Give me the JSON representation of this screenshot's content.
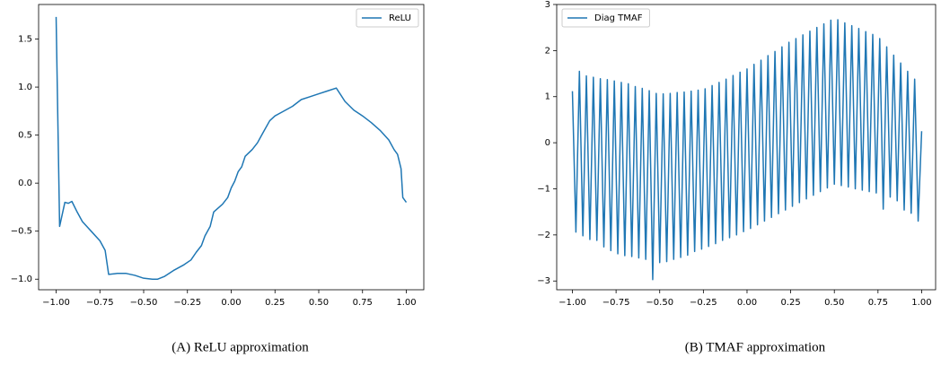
{
  "chart_data": [
    {
      "type": "line",
      "caption": "(A) ReLU approximation",
      "legend": "upper right",
      "x": [
        -1.0,
        -0.98,
        -0.95,
        -0.93,
        -0.91,
        -0.88,
        -0.85,
        -0.8,
        -0.75,
        -0.72,
        -0.7,
        -0.65,
        -0.6,
        -0.55,
        -0.5,
        -0.45,
        -0.42,
        -0.38,
        -0.33,
        -0.27,
        -0.23,
        -0.2,
        -0.17,
        -0.15,
        -0.12,
        -0.1,
        -0.05,
        -0.02,
        0.0,
        0.02,
        0.04,
        0.06,
        0.08,
        0.12,
        0.15,
        0.18,
        0.22,
        0.25,
        0.3,
        0.35,
        0.4,
        0.45,
        0.5,
        0.55,
        0.6,
        0.65,
        0.7,
        0.75,
        0.8,
        0.85,
        0.9,
        0.93,
        0.95,
        0.97,
        0.98,
        1.0
      ],
      "series": [
        {
          "name": "ReLU",
          "color": "#1f77b4",
          "values": [
            1.73,
            -0.45,
            -0.2,
            -0.21,
            -0.19,
            -0.3,
            -0.4,
            -0.5,
            -0.6,
            -0.7,
            -0.95,
            -0.94,
            -0.94,
            -0.96,
            -0.99,
            -1.0,
            -1.0,
            -0.97,
            -0.91,
            -0.85,
            -0.8,
            -0.72,
            -0.65,
            -0.55,
            -0.45,
            -0.3,
            -0.22,
            -0.15,
            -0.05,
            0.02,
            0.12,
            0.17,
            0.28,
            0.35,
            0.42,
            0.52,
            0.65,
            0.7,
            0.75,
            0.8,
            0.87,
            0.9,
            0.93,
            0.96,
            0.99,
            0.85,
            0.76,
            0.7,
            0.63,
            0.55,
            0.45,
            0.35,
            0.3,
            0.15,
            -0.15,
            -0.2
          ]
        }
      ],
      "xlim": [
        -1.1,
        1.1
      ],
      "ylim": [
        -1.11,
        1.86
      ],
      "xticks": [
        {
          "value": -1.0,
          "label": "−1.00"
        },
        {
          "value": -0.75,
          "label": "−0.75"
        },
        {
          "value": -0.5,
          "label": "−0.50"
        },
        {
          "value": -0.25,
          "label": "−0.25"
        },
        {
          "value": 0,
          "label": "0.00"
        },
        0.25,
        {
          "value": 0.5,
          "label": "0.50"
        },
        0.75,
        {
          "value": 1.0,
          "label": "1.00"
        }
      ],
      "yticks": [
        {
          "value": -1.0,
          "label": "−1.0"
        },
        {
          "value": -0.5,
          "label": "−0.5"
        },
        {
          "value": 0,
          "label": "0.0"
        },
        0.5,
        {
          "value": 1.0,
          "label": "1.0"
        },
        1.5
      ]
    },
    {
      "type": "line",
      "caption": "(B) TMAF approximation",
      "legend": "upper left",
      "x": [
        -1.0,
        -0.98,
        -0.96,
        -0.94,
        -0.92,
        -0.9,
        -0.88,
        -0.86,
        -0.84,
        -0.82,
        -0.8,
        -0.78,
        -0.76,
        -0.74,
        -0.72,
        -0.7,
        -0.68,
        -0.66,
        -0.64,
        -0.62,
        -0.6,
        -0.58,
        -0.56,
        -0.54,
        -0.52,
        -0.5,
        -0.48,
        -0.46,
        -0.44,
        -0.42,
        -0.4,
        -0.38,
        -0.36,
        -0.34,
        -0.32,
        -0.3,
        -0.28,
        -0.26,
        -0.24,
        -0.22,
        -0.2,
        -0.18,
        -0.16,
        -0.14,
        -0.12,
        -0.1,
        -0.08,
        -0.06,
        -0.04,
        -0.02,
        0.0,
        0.02,
        0.04,
        0.06,
        0.08,
        0.1,
        0.12,
        0.14,
        0.16,
        0.18,
        0.2,
        0.22,
        0.24,
        0.26,
        0.28,
        0.3,
        0.32,
        0.34,
        0.36,
        0.38,
        0.4,
        0.42,
        0.44,
        0.46,
        0.48,
        0.5,
        0.52,
        0.54,
        0.56,
        0.58,
        0.6,
        0.62,
        0.64,
        0.66,
        0.68,
        0.7,
        0.72,
        0.74,
        0.76,
        0.78,
        0.8,
        0.82,
        0.84,
        0.86,
        0.88,
        0.9,
        0.92,
        0.94,
        0.96,
        0.98,
        1.0
      ],
      "series": [
        {
          "name": "Diag TMAF",
          "color": "#1f77b4",
          "values": [
            1.12,
            -1.94,
            1.55,
            -2.02,
            1.45,
            -2.1,
            1.42,
            -2.12,
            1.39,
            -2.26,
            1.37,
            -2.34,
            1.34,
            -2.41,
            1.31,
            -2.45,
            1.28,
            -2.47,
            1.22,
            -2.5,
            1.18,
            -2.53,
            1.13,
            -2.97,
            1.07,
            -2.6,
            1.06,
            -2.58,
            1.07,
            -2.53,
            1.09,
            -2.49,
            1.1,
            -2.44,
            1.12,
            -2.36,
            1.14,
            -2.31,
            1.17,
            -2.25,
            1.24,
            -2.19,
            1.31,
            -2.12,
            1.38,
            -2.06,
            1.46,
            -2.0,
            1.53,
            -1.93,
            1.6,
            -1.86,
            1.7,
            -1.78,
            1.79,
            -1.7,
            1.89,
            -1.62,
            1.98,
            -1.54,
            2.08,
            -1.46,
            2.18,
            -1.38,
            2.26,
            -1.3,
            2.34,
            -1.22,
            2.42,
            -1.14,
            2.5,
            -1.06,
            2.58,
            -0.98,
            2.66,
            -0.9,
            2.67,
            -0.93,
            2.6,
            -0.96,
            2.54,
            -1.0,
            2.48,
            -1.03,
            2.41,
            -1.06,
            2.35,
            -1.09,
            2.26,
            -1.44,
            2.08,
            -1.18,
            1.9,
            -1.26,
            1.73,
            -1.46,
            1.55,
            -1.53,
            1.38,
            -1.7,
            0.25
          ]
        }
      ],
      "xlim": [
        -1.09,
        1.08
      ],
      "ylim": [
        -3.19,
        3.0
      ],
      "xticks": [
        {
          "value": -1.0,
          "label": "−1.00"
        },
        {
          "value": -0.75,
          "label": "−0.75"
        },
        {
          "value": -0.5,
          "label": "−0.50"
        },
        {
          "value": -0.25,
          "label": "−0.25"
        },
        {
          "value": 0,
          "label": "0.00"
        },
        0.25,
        {
          "value": 0.5,
          "label": "0.50"
        },
        0.75,
        {
          "value": 1.0,
          "label": "1.00"
        }
      ],
      "yticks": [
        {
          "value": -3,
          "label": "−3"
        },
        {
          "value": -2,
          "label": "−2"
        },
        {
          "value": -1,
          "label": "−1"
        },
        0,
        1,
        2,
        3
      ]
    }
  ]
}
